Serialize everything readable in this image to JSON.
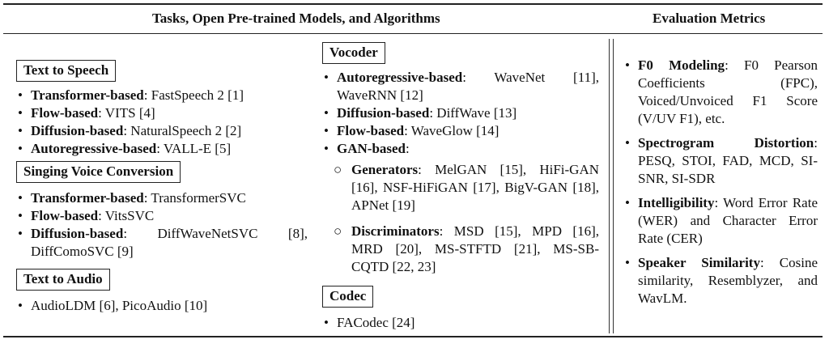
{
  "headers": {
    "left": "Tasks, Open Pre-trained Models, and Algorithms",
    "right": "Evaluation Metrics"
  },
  "tts": {
    "title": "Text to Speech",
    "items": [
      {
        "bold": "Transformer-based",
        "rest": ": FastSpeech 2 [1]"
      },
      {
        "bold": "Flow-based",
        "rest": ": VITS [4]"
      },
      {
        "bold": "Diffusion-based",
        "rest": ": NaturalSpeech 2 [2]"
      },
      {
        "bold": "Autoregressive-based",
        "rest": ": VALL-E [5]"
      }
    ]
  },
  "svc": {
    "title": "Singing Voice Conversion",
    "items": [
      {
        "bold": "Transformer-based",
        "rest": ": TransformerSVC"
      },
      {
        "bold": "Flow-based",
        "rest": ": VitsSVC"
      },
      {
        "bold": "Diffusion-based",
        "rest": ": DiffWaveNetSVC [8], DiffComoSVC [9]"
      }
    ]
  },
  "tta": {
    "title": "Text to Audio",
    "items": [
      {
        "rest": "AudioLDM [6], PicoAudio [10]"
      }
    ]
  },
  "vocoder": {
    "title": "Vocoder",
    "items": [
      {
        "bold": "Autoregressive-based",
        "rest": ": WaveNet [11], WaveRNN [12]"
      },
      {
        "bold": "Diffusion-based",
        "rest": ": DiffWave [13]"
      },
      {
        "bold": "Flow-based",
        "rest": ": WaveGlow [14]"
      },
      {
        "bold": "GAN-based",
        "rest": ":"
      }
    ],
    "gan_sub": [
      {
        "bold": "Generators",
        "rest": ": MelGAN [15], HiFi-GAN [16], NSF-HiFiGAN [17], BigV-GAN [18], APNet [19]"
      },
      {
        "bold": "Discriminators",
        "rest": ": MSD [15], MPD [16], MRD [20], MS-STFTD [21], MS-SB-CQTD [22, 23]"
      }
    ]
  },
  "codec": {
    "title": "Codec",
    "items": [
      {
        "rest": "FACodec [24]"
      }
    ]
  },
  "metrics": {
    "items": [
      {
        "bold": "F0 Modeling",
        "rest": ": F0 Pearson Coefficients (FPC), Voiced/Unvoiced F1 Score (V/UV F1), etc."
      },
      {
        "bold": "Spectrogram Distortion",
        "rest": ": PESQ, STOI, FAD, MCD, SI-SNR, SI-SDR"
      },
      {
        "bold": "Intelligibility",
        "rest": ": Word Error Rate (WER) and Character Error Rate (CER)"
      },
      {
        "bold": "Speaker Similarity",
        "rest": ": Cosine similarity, Resemblyzer, and WavLM."
      }
    ]
  },
  "glyphs": {
    "bullet": "•",
    "circle": "○"
  }
}
